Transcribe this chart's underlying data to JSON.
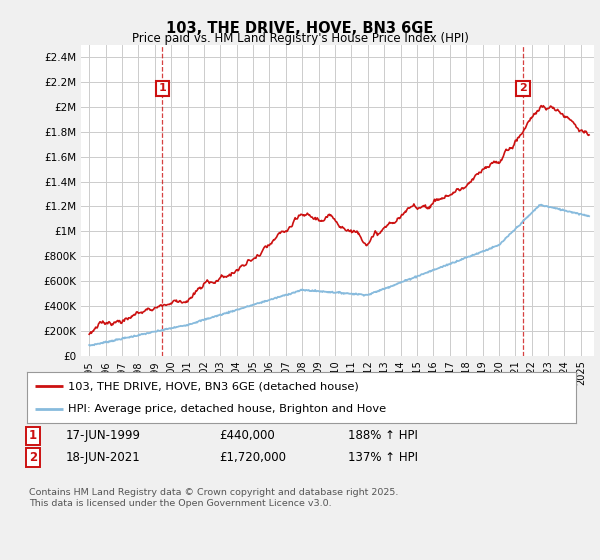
{
  "title": "103, THE DRIVE, HOVE, BN3 6GE",
  "subtitle": "Price paid vs. HM Land Registry's House Price Index (HPI)",
  "ylim": [
    0,
    2500000
  ],
  "red_color": "#cc1111",
  "blue_color": "#88bbdd",
  "grid_color": "#cccccc",
  "background_color": "#f0f0f0",
  "plot_bg_color": "#ffffff",
  "legend_label_red": "103, THE DRIVE, HOVE, BN3 6GE (detached house)",
  "legend_label_blue": "HPI: Average price, detached house, Brighton and Hove",
  "marker1_year": 1999.46,
  "marker1_value": 440000,
  "marker2_year": 2021.46,
  "marker2_value": 1720000,
  "footnote": "Contains HM Land Registry data © Crown copyright and database right 2025.\nThis data is licensed under the Open Government Licence v3.0."
}
